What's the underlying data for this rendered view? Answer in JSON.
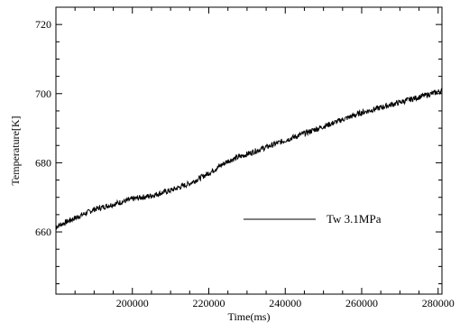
{
  "chart_data": {
    "type": "line",
    "xlabel": "Time(ms)",
    "ylabel": "Temperature[K]",
    "xlim": [
      180000,
      281000
    ],
    "ylim": [
      642,
      725
    ],
    "x_ticks": [
      200000,
      220000,
      240000,
      260000,
      280000
    ],
    "y_ticks": [
      660,
      680,
      700,
      720
    ],
    "grid": false,
    "legend_position": "right-center",
    "series": [
      {
        "name": "Tw 3.1MPa",
        "color": "#000000",
        "x": [
          180000,
          185000,
          190000,
          195000,
          200000,
          205000,
          210000,
          215000,
          220000,
          225000,
          230000,
          235000,
          240000,
          245000,
          250000,
          255000,
          260000,
          265000,
          270000,
          275000,
          280000,
          281000
        ],
        "y": [
          661.5,
          664.0,
          666.5,
          668.0,
          669.5,
          670.5,
          672.0,
          674.0,
          677.0,
          680.5,
          682.5,
          684.5,
          686.5,
          688.5,
          690.5,
          692.5,
          694.5,
          696.0,
          697.5,
          699.0,
          700.5,
          701.0
        ]
      }
    ]
  }
}
